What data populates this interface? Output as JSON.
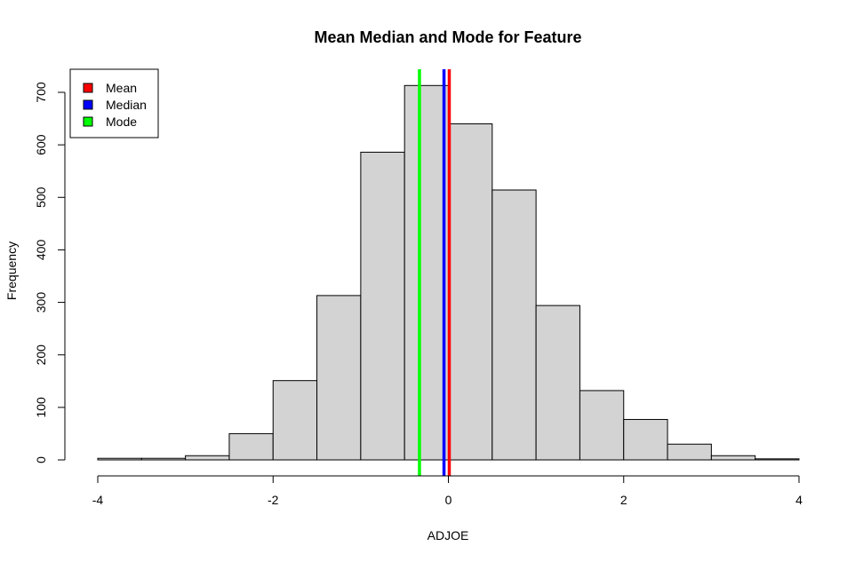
{
  "chart_data": {
    "type": "bar",
    "title": "Mean Median and Mode for Feature",
    "xlabel": "ADJOE",
    "ylabel": "Frequency",
    "xlim": [
      -4,
      4
    ],
    "ylim": [
      0,
      700
    ],
    "x_ticks": [
      "-4",
      "-2",
      "0",
      "2",
      "4"
    ],
    "y_ticks": [
      "0",
      "100",
      "200",
      "300",
      "400",
      "500",
      "600",
      "700"
    ],
    "bins": [
      {
        "start": -4.0,
        "end": -3.5,
        "count": 3
      },
      {
        "start": -3.5,
        "end": -3.0,
        "count": 3
      },
      {
        "start": -3.0,
        "end": -2.5,
        "count": 8
      },
      {
        "start": -2.5,
        "end": -2.0,
        "count": 50
      },
      {
        "start": -2.0,
        "end": -1.5,
        "count": 151
      },
      {
        "start": -1.5,
        "end": -1.0,
        "count": 313
      },
      {
        "start": -1.0,
        "end": -0.5,
        "count": 586
      },
      {
        "start": -0.5,
        "end": 0.0,
        "count": 713
      },
      {
        "start": 0.0,
        "end": 0.5,
        "count": 640
      },
      {
        "start": 0.5,
        "end": 1.0,
        "count": 514
      },
      {
        "start": 1.0,
        "end": 1.5,
        "count": 294
      },
      {
        "start": 1.5,
        "end": 2.0,
        "count": 132
      },
      {
        "start": 2.0,
        "end": 2.5,
        "count": 77
      },
      {
        "start": 2.5,
        "end": 3.0,
        "count": 30
      },
      {
        "start": 3.0,
        "end": 3.5,
        "count": 8
      },
      {
        "start": 3.5,
        "end": 4.0,
        "count": 2
      }
    ],
    "bar_fill": "#d3d3d3",
    "vlines": [
      {
        "name": "Mean",
        "x": 0.01,
        "color": "#ff0000"
      },
      {
        "name": "Median",
        "x": -0.05,
        "color": "#0000ff"
      },
      {
        "name": "Mode",
        "x": -0.33,
        "color": "#00ff00"
      }
    ],
    "legend": {
      "position": "top-left",
      "items": [
        {
          "label": "Mean",
          "color": "#ff0000"
        },
        {
          "label": "Median",
          "color": "#0000ff"
        },
        {
          "label": "Mode",
          "color": "#00ff00"
        }
      ]
    },
    "grid": false
  }
}
